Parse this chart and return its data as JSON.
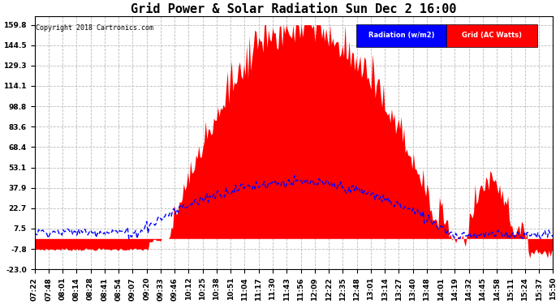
{
  "title": "Grid Power & Solar Radiation Sun Dec 2 16:00",
  "copyright": "Copyright 2018 Cartronics.com",
  "yticks": [
    159.8,
    144.5,
    129.3,
    114.1,
    98.8,
    83.6,
    68.4,
    53.1,
    37.9,
    22.7,
    7.5,
    -7.8,
    -23.0
  ],
  "ylim": [
    -23.0,
    166.0
  ],
  "legend_labels": [
    "Radiation (w/m2)",
    "Grid (AC Watts)"
  ],
  "legend_colors": [
    "#0000cc",
    "#ff0000"
  ],
  "background_color": "#ffffff",
  "grid_color": "#bbbbbb",
  "title_fontsize": 11,
  "tick_label_fontsize": 6.5,
  "xtick_labels": [
    "07:22",
    "07:48",
    "08:01",
    "08:14",
    "08:28",
    "08:41",
    "08:54",
    "09:07",
    "09:20",
    "09:33",
    "09:46",
    "10:12",
    "10:25",
    "10:38",
    "10:51",
    "11:04",
    "11:17",
    "11:30",
    "11:43",
    "11:56",
    "12:09",
    "12:22",
    "12:35",
    "12:48",
    "13:01",
    "13:14",
    "13:27",
    "13:40",
    "13:48",
    "14:01",
    "14:19",
    "14:32",
    "14:45",
    "14:58",
    "15:11",
    "15:24",
    "15:37",
    "15:50"
  ],
  "num_points": 380
}
